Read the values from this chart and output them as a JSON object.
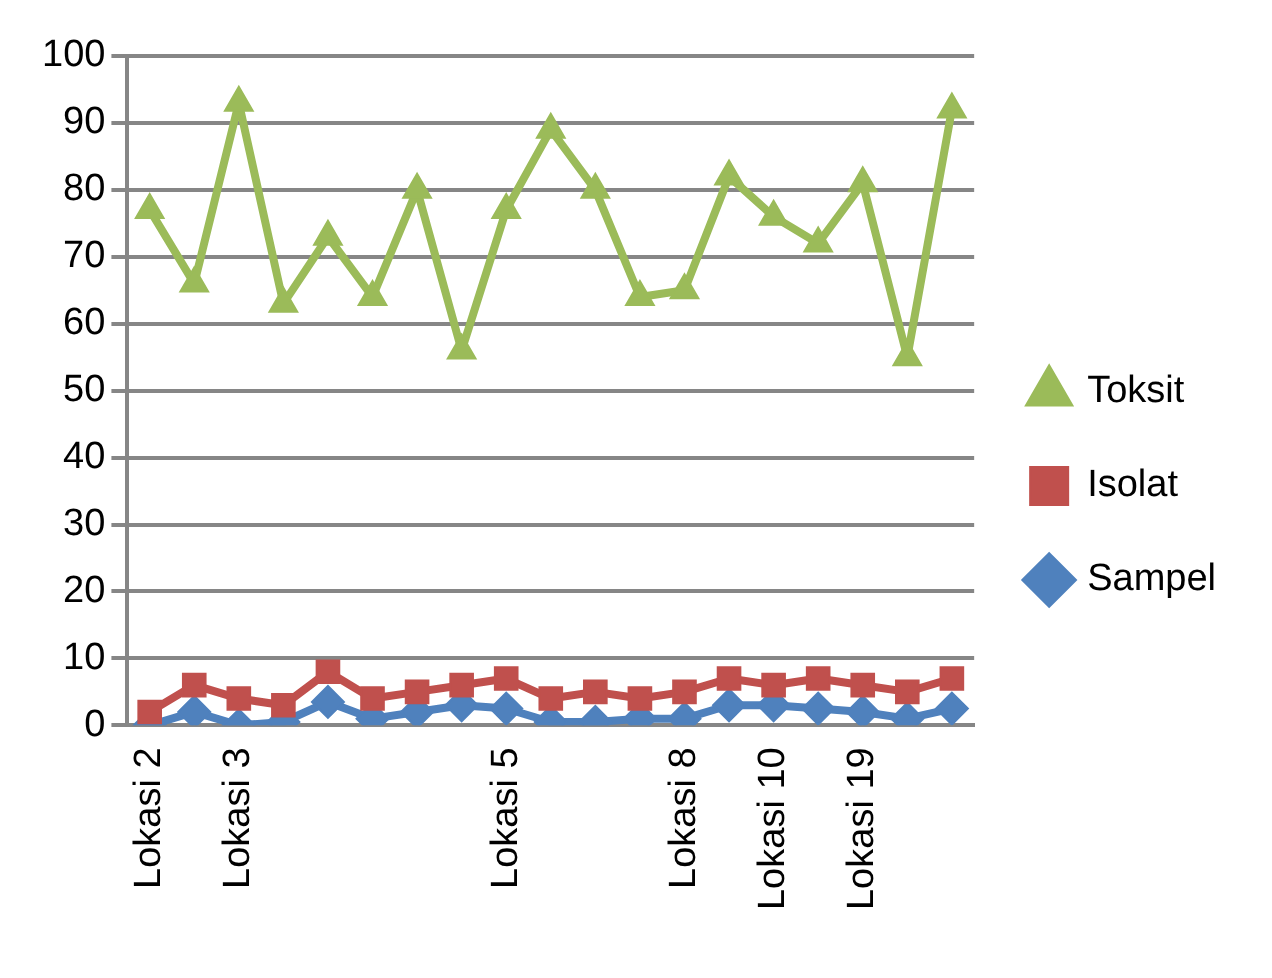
{
  "chart_data": {
    "type": "line",
    "categories": [
      "Lokasi 2",
      null,
      "Lokasi 3",
      null,
      null,
      null,
      null,
      null,
      "Lokasi 5",
      null,
      null,
      null,
      "Lokasi 8",
      null,
      "Lokasi 10",
      null,
      "Lokasi 19",
      null,
      null
    ],
    "series": [
      {
        "name": "Toksit",
        "color": "#9bbb59",
        "marker": "triangle",
        "values": [
          77,
          66,
          93,
          63,
          73,
          64,
          80,
          56,
          77,
          89,
          80,
          64,
          65,
          82,
          76,
          72,
          81,
          55,
          92
        ]
      },
      {
        "name": "Isolat",
        "color": "#c0504d",
        "marker": "square",
        "values": [
          2,
          6,
          4,
          3,
          8,
          4,
          5,
          6,
          7,
          4,
          5,
          4,
          5,
          7,
          6,
          7,
          6,
          5,
          7
        ]
      },
      {
        "name": "Sampel",
        "color": "#4f81bd",
        "marker": "diamond",
        "values": [
          0,
          2,
          0,
          0.5,
          3.5,
          1,
          2,
          3,
          2.5,
          0.5,
          0.5,
          1,
          1,
          3,
          3,
          2.5,
          2,
          1,
          2.5
        ]
      }
    ],
    "ylim": [
      0,
      100
    ],
    "yticks": [
      0,
      10,
      20,
      30,
      40,
      50,
      60,
      70,
      80,
      90,
      100
    ],
    "grid": "y",
    "legend": "right"
  }
}
